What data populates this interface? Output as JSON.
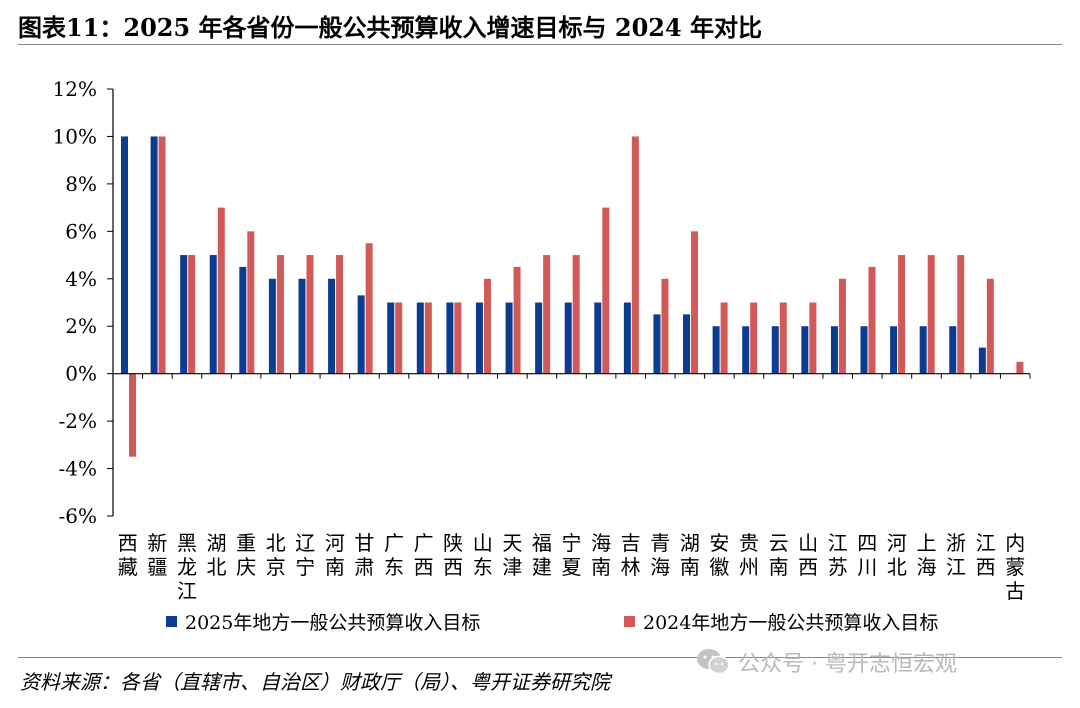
{
  "title": "图表11：2025 年各省份一般公共预算收入增速目标与 2024 年对比",
  "source": "资料来源：各省（直辖市、自治区）财政厅（局）、粤开证券研究院",
  "watermark": "公众号 · 粤开志恒宏观",
  "colors": {
    "series_2025": "#0c3c8f",
    "series_2024": "#d15a58"
  },
  "chart_data": {
    "type": "bar",
    "ylim": [
      -6,
      12
    ],
    "yticks": [
      -6,
      -4,
      -2,
      0,
      2,
      4,
      6,
      8,
      10,
      12
    ],
    "ytick_labels": [
      "-6%",
      "-4%",
      "-2%",
      "0%",
      "2%",
      "4%",
      "6%",
      "8%",
      "10%",
      "12%"
    ],
    "legend_position": "bottom",
    "categories": [
      "西藏",
      "新疆",
      "黑龙江",
      "湖北",
      "重庆",
      "北京",
      "辽宁",
      "河南",
      "甘肃",
      "广东",
      "广西",
      "陕西",
      "山东",
      "天津",
      "福建",
      "宁夏",
      "海南",
      "吉林",
      "青海",
      "湖南",
      "安徽",
      "贵州",
      "云南",
      "山西",
      "江苏",
      "四川",
      "河北",
      "上海",
      "浙江",
      "江西",
      "内蒙古"
    ],
    "series": [
      {
        "name": "2025年地方一般公共预算收入目标",
        "values": [
          10,
          10,
          5,
          5,
          4.5,
          4,
          4,
          4,
          3.3,
          3,
          3,
          3,
          3,
          3,
          3,
          3,
          3,
          3,
          2.5,
          2.5,
          2,
          2,
          2,
          2,
          2,
          2,
          2,
          2,
          2,
          1.1,
          null
        ]
      },
      {
        "name": "2024年地方一般公共预算收入目标",
        "values": [
          -3.5,
          10,
          5,
          7,
          6,
          5,
          5,
          5,
          5.5,
          3,
          3,
          3,
          4,
          4.5,
          5,
          5,
          7,
          10,
          4,
          6,
          3,
          3,
          3,
          3,
          4,
          4.5,
          5,
          5,
          5,
          4,
          0.5
        ]
      }
    ]
  }
}
